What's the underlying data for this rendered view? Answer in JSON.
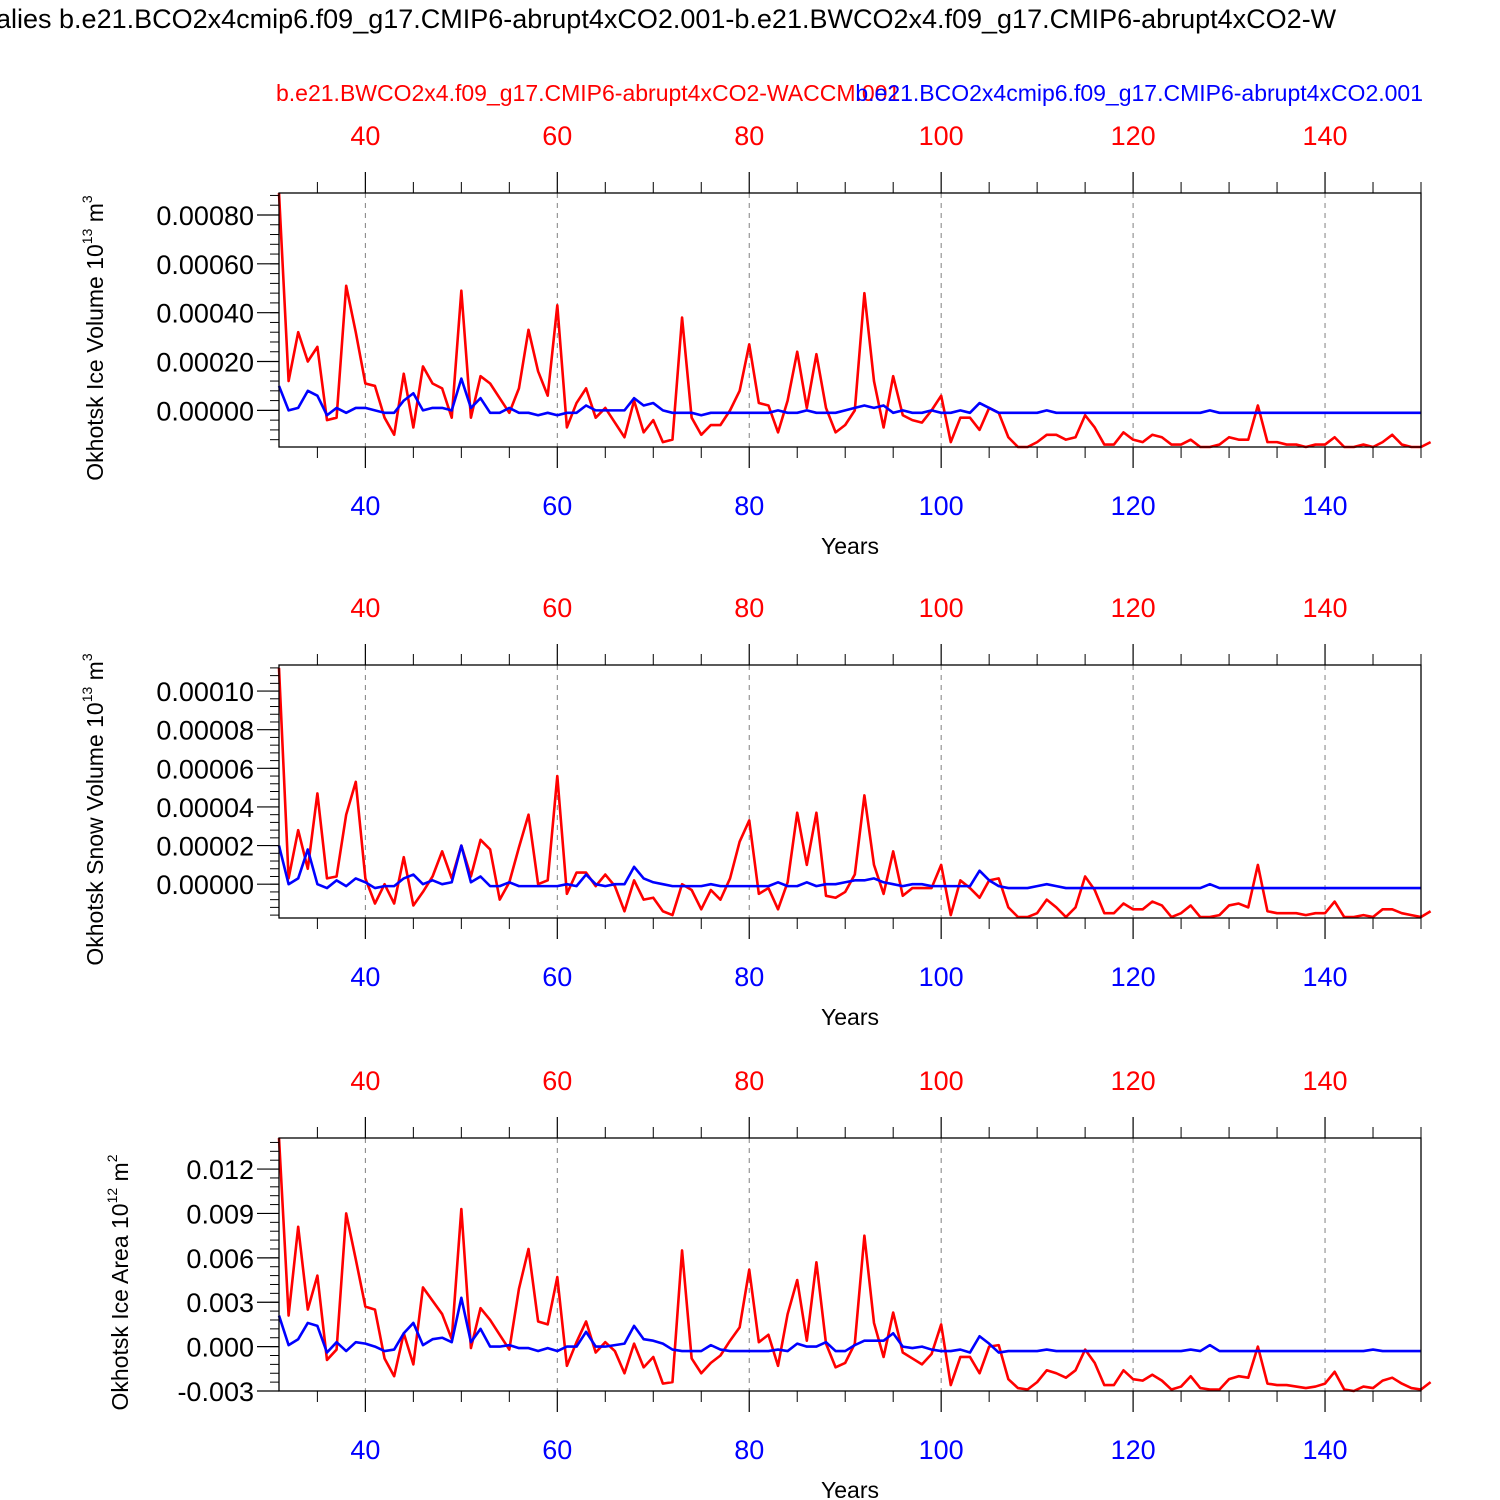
{
  "figure": {
    "title": "alies b.e21.BCO2x4cmip6.f09_g17.CMIP6-abrupt4xCO2.001-b.e21.BWCO2x4.f09_g17.CMIP6-abrupt4xCO2-W",
    "series_red_title": "b.e21.BWCO2x4.f09_g17.CMIP6-abrupt4xCO2-WACCM.001",
    "series_blue_title": "b.e21.BCO2x4cmip6.f09_g17.CMIP6-abrupt4xCO2.001",
    "colors": {
      "red": "#ff0000",
      "blue": "#0000ff",
      "axis": "#000000",
      "grid": "#808080"
    }
  },
  "chart_data": [
    {
      "type": "line",
      "ylabel": "Okhotsk Ice Volume 10",
      "ylabel_exp": "13",
      "ylabel_unit": " m",
      "ylabel_unit_exp": "3",
      "xlabel": "Years",
      "xlim": [
        31,
        150
      ],
      "ylim": [
        -0.00015,
        0.00089
      ],
      "x_ticks": [
        40,
        60,
        80,
        100,
        120,
        140
      ],
      "x_tick_labels": [
        "40",
        "60",
        "80",
        "100",
        "120",
        "140"
      ],
      "y_ticks": [
        0.0,
        0.0002,
        0.0004,
        0.0006,
        0.0008
      ],
      "y_tick_labels": [
        "0.00000",
        "0.00020",
        "0.00040",
        "0.00060",
        "0.00080"
      ],
      "y_minor_step": 4e-05,
      "grid": "vertical dashed",
      "x_start": 31,
      "series": [
        {
          "color": "red",
          "values": [
            0.00089,
            0.00012,
            0.00032,
            0.0002,
            0.00026,
            -4e-05,
            -3e-05,
            0.00051,
            0.00032,
            0.00011,
            0.0001,
            -3e-05,
            -0.0001,
            0.00015,
            -7e-05,
            0.00018,
            0.00011,
            9e-05,
            -3e-05,
            0.00049,
            -3e-05,
            0.00014,
            0.00011,
            5e-05,
            -1e-05,
            9e-05,
            0.00033,
            0.00016,
            6e-05,
            0.00043,
            -7e-05,
            3e-05,
            9e-05,
            -3e-05,
            1e-05,
            -5e-05,
            -0.00011,
            4e-05,
            -9e-05,
            -4e-05,
            -0.00013,
            -0.00012,
            0.00038,
            -3e-05,
            -0.0001,
            -6e-05,
            -6e-05,
            0.0,
            8e-05,
            0.00027,
            3e-05,
            2e-05,
            -9e-05,
            4e-05,
            0.00024,
            1e-05,
            0.00023,
            1e-05,
            -9e-05,
            -6e-05,
            0.0,
            0.00048,
            0.00012,
            -7e-05,
            0.00014,
            -2e-05,
            -4e-05,
            -5e-05,
            0.0,
            6e-05,
            -0.00013,
            -3e-05,
            -3e-05,
            -8e-05,
            1e-05,
            -1e-05,
            -0.00011,
            -0.00015,
            -0.00015,
            -0.00013,
            -0.0001,
            -0.0001,
            -0.00012,
            -0.00011,
            -2e-05,
            -7e-05,
            -0.00014,
            -0.00014,
            -9e-05,
            -0.00012,
            -0.00013,
            -0.0001,
            -0.00011,
            -0.00014,
            -0.00014,
            -0.00012,
            -0.00015,
            -0.00015,
            -0.00014,
            -0.00011,
            -0.00012,
            -0.00012,
            2e-05,
            -0.00013,
            -0.00013,
            -0.00014,
            -0.00014,
            -0.00015,
            -0.00014,
            -0.00014,
            -0.00011,
            -0.00015,
            -0.00015,
            -0.00014,
            -0.00015,
            -0.00013,
            -0.0001,
            -0.00014,
            -0.00015,
            -0.00015,
            -0.00013
          ]
        },
        {
          "color": "blue",
          "values": [
            0.0001,
            0.0,
            1e-05,
            8e-05,
            6e-05,
            -2e-05,
            1e-05,
            -1e-05,
            1e-05,
            1e-05,
            0.0,
            -1e-05,
            -1e-05,
            4e-05,
            7e-05,
            0.0,
            1e-05,
            1e-05,
            0.0,
            0.00013,
            1e-05,
            5e-05,
            -1e-05,
            -1e-05,
            1e-05,
            -1e-05,
            -1e-05,
            -2e-05,
            -1e-05,
            -2e-05,
            -1e-05,
            -1e-05,
            2e-05,
            0.0,
            0.0,
            0.0,
            0.0,
            5e-05,
            2e-05,
            3e-05,
            0.0,
            -1e-05,
            -1e-05,
            -1e-05,
            -2e-05,
            -1e-05,
            -1e-05,
            -1e-05,
            -1e-05,
            -1e-05,
            -1e-05,
            -1e-05,
            0.0,
            -1e-05,
            -1e-05,
            0.0,
            -1e-05,
            -1e-05,
            -1e-05,
            0.0,
            1e-05,
            2e-05,
            1e-05,
            2e-05,
            -1e-05,
            0.0,
            -1e-05,
            -1e-05,
            0.0,
            -1e-05,
            -1e-05,
            0.0,
            -1e-05,
            3e-05,
            1e-05,
            -1e-05,
            -1e-05,
            -1e-05,
            -1e-05,
            -1e-05,
            0.0,
            -1e-05,
            -1e-05,
            -1e-05,
            -1e-05,
            -1e-05,
            -1e-05,
            -1e-05,
            -1e-05,
            -1e-05,
            -1e-05,
            -1e-05,
            -1e-05,
            -1e-05,
            -1e-05,
            -1e-05,
            -1e-05,
            0.0,
            -1e-05,
            -1e-05,
            -1e-05,
            -1e-05,
            -1e-05,
            -1e-05,
            -1e-05,
            -1e-05,
            -1e-05,
            -1e-05,
            -1e-05,
            -1e-05,
            -1e-05,
            -1e-05,
            -1e-05,
            -1e-05,
            -1e-05,
            -1e-05,
            -1e-05,
            -1e-05,
            -1e-05,
            -1e-05
          ]
        }
      ]
    },
    {
      "type": "line",
      "ylabel": "Okhotsk Snow Volume 10",
      "ylabel_exp": "13",
      "ylabel_unit": " m",
      "ylabel_unit_exp": "3",
      "xlabel": "Years",
      "xlim": [
        31,
        150
      ],
      "ylim": [
        -1.75e-05,
        0.0001135
      ],
      "x_ticks": [
        40,
        60,
        80,
        100,
        120,
        140
      ],
      "x_tick_labels": [
        "40",
        "60",
        "80",
        "100",
        "120",
        "140"
      ],
      "y_ticks": [
        0.0,
        2e-05,
        4e-05,
        6e-05,
        8e-05,
        0.0001
      ],
      "y_tick_labels": [
        "0.00000",
        "0.00002",
        "0.00004",
        "0.00006",
        "0.00008",
        "0.00010"
      ],
      "y_minor_step": 4e-06,
      "grid": "vertical dashed",
      "x_start": 31,
      "series": [
        {
          "color": "red",
          "values": [
            0.000112,
            3e-06,
            2.8e-05,
            8e-06,
            4.7e-05,
            3e-06,
            4e-06,
            3.6e-05,
            5.3e-05,
            3e-06,
            -1e-05,
            0.0,
            -1e-05,
            1.4e-05,
            -1.1e-05,
            -4e-06,
            4e-06,
            1.7e-05,
            3e-06,
            2e-05,
            4e-06,
            2.3e-05,
            1.8e-05,
            -8e-06,
            1e-06,
            1.9e-05,
            3.6e-05,
            0.0,
            2e-06,
            5.6e-05,
            -5e-06,
            6e-06,
            6e-06,
            -1e-06,
            5e-06,
            -1e-06,
            -1.4e-05,
            2e-06,
            -8e-06,
            -7e-06,
            -1.4e-05,
            -1.6e-05,
            0.0,
            -3e-06,
            -1.3e-05,
            -3e-06,
            -8e-06,
            3e-06,
            2.2e-05,
            3.3e-05,
            -5e-06,
            -2e-06,
            -1.3e-05,
            1e-06,
            3.7e-05,
            1e-05,
            3.7e-05,
            -6e-06,
            -7e-06,
            -4e-06,
            5e-06,
            4.6e-05,
            1e-05,
            -5e-06,
            1.7e-05,
            -6e-06,
            -2e-06,
            -2e-06,
            -2e-06,
            1e-05,
            -1.6e-05,
            2e-06,
            -2e-06,
            -7e-06,
            2e-06,
            3e-06,
            -1.2e-05,
            -1.7e-05,
            -1.7e-05,
            -1.5e-05,
            -8e-06,
            -1.2e-05,
            -1.7e-05,
            -1.2e-05,
            4e-06,
            -3e-06,
            -1.5e-05,
            -1.5e-05,
            -1e-05,
            -1.3e-05,
            -1.3e-05,
            -9e-06,
            -1.1e-05,
            -1.7e-05,
            -1.5e-05,
            -1.1e-05,
            -1.7e-05,
            -1.7e-05,
            -1.6e-05,
            -1.1e-05,
            -1e-05,
            -1.2e-05,
            1e-05,
            -1.4e-05,
            -1.5e-05,
            -1.5e-05,
            -1.5e-05,
            -1.6e-05,
            -1.5e-05,
            -1.5e-05,
            -9e-06,
            -1.7e-05,
            -1.7e-05,
            -1.6e-05,
            -1.7e-05,
            -1.3e-05,
            -1.3e-05,
            -1.5e-05,
            -1.6e-05,
            -1.7e-05,
            -1.4e-05
          ]
        },
        {
          "color": "blue",
          "values": [
            2e-05,
            0.0,
            3e-06,
            1.8e-05,
            0.0,
            -2e-06,
            2e-06,
            -1e-06,
            3e-06,
            1e-06,
            -2e-06,
            -1e-06,
            -1e-06,
            3e-06,
            5e-06,
            0.0,
            2e-06,
            0.0,
            1e-06,
            2e-05,
            1e-06,
            4e-06,
            -1e-06,
            -1e-06,
            1e-06,
            -1e-06,
            -1e-06,
            -1e-06,
            -1e-06,
            -1e-06,
            0.0,
            -1e-06,
            5e-06,
            0.0,
            -1e-06,
            0.0,
            0.0,
            9e-06,
            3e-06,
            1e-06,
            0.0,
            -1e-06,
            -1e-06,
            -1e-06,
            -1e-06,
            0.0,
            -1e-06,
            -1e-06,
            -1e-06,
            -1e-06,
            -1e-06,
            -1e-06,
            1e-06,
            -1e-06,
            -1e-06,
            1e-06,
            -1e-06,
            0.0,
            0.0,
            1e-06,
            2e-06,
            2e-06,
            3e-06,
            1e-06,
            0.0,
            -1e-06,
            0.0,
            0.0,
            -1e-06,
            -1e-06,
            -1e-06,
            -1e-06,
            -1e-06,
            7e-06,
            2e-06,
            -1e-06,
            -2e-06,
            -2e-06,
            -2e-06,
            -1e-06,
            0.0,
            -1e-06,
            -2e-06,
            -2e-06,
            -2e-06,
            -2e-06,
            -2e-06,
            -2e-06,
            -2e-06,
            -2e-06,
            -2e-06,
            -2e-06,
            -2e-06,
            -2e-06,
            -2e-06,
            -2e-06,
            -2e-06,
            0.0,
            -2e-06,
            -2e-06,
            -2e-06,
            -2e-06,
            -2e-06,
            -2e-06,
            -2e-06,
            -2e-06,
            -2e-06,
            -2e-06,
            -2e-06,
            -2e-06,
            -2e-06,
            -2e-06,
            -2e-06,
            -2e-06,
            -2e-06,
            -2e-06,
            -2e-06,
            -2e-06,
            -2e-06,
            -2e-06
          ]
        }
      ]
    },
    {
      "type": "line",
      "ylabel": "Okhotsk Ice Area 10",
      "ylabel_exp": "12",
      "ylabel_unit": " m",
      "ylabel_unit_exp": "2",
      "xlabel": "Years",
      "xlim": [
        31,
        150
      ],
      "ylim": [
        -0.003,
        0.0141
      ],
      "x_ticks": [
        40,
        60,
        80,
        100,
        120,
        140
      ],
      "x_tick_labels": [
        "40",
        "60",
        "80",
        "100",
        "120",
        "140"
      ],
      "y_ticks": [
        -0.003,
        0.0,
        0.003,
        0.006,
        0.009,
        0.012
      ],
      "y_tick_labels": [
        "-0.003",
        "0.000",
        "0.003",
        "0.006",
        "0.009",
        "0.012"
      ],
      "y_minor_step": 0.0006,
      "grid": "vertical dashed",
      "x_start": 31,
      "series": [
        {
          "color": "red",
          "values": [
            0.0141,
            0.0021,
            0.0081,
            0.0025,
            0.0048,
            -0.0009,
            -0.0002,
            0.009,
            0.0059,
            0.0027,
            0.0025,
            -0.0008,
            -0.002,
            0.0009,
            -0.0012,
            0.004,
            0.0031,
            0.0022,
            0.0005,
            0.0093,
            -0.0001,
            0.0026,
            0.0018,
            0.0008,
            -0.0002,
            0.0039,
            0.0066,
            0.0017,
            0.0015,
            0.0047,
            -0.0013,
            0.0003,
            0.0017,
            -0.0004,
            0.0003,
            -0.0003,
            -0.0018,
            0.0002,
            -0.0014,
            -0.0007,
            -0.0025,
            -0.0024,
            0.0065,
            -0.0008,
            -0.0018,
            -0.0011,
            -0.0006,
            0.0004,
            0.0013,
            0.0052,
            0.0003,
            0.0008,
            -0.0013,
            0.0022,
            0.0045,
            0.0004,
            0.0057,
            0.0002,
            -0.0014,
            -0.0011,
            0.0002,
            0.0075,
            0.0016,
            -0.0007,
            0.0023,
            -0.0004,
            -0.0008,
            -0.0012,
            -0.0005,
            0.0015,
            -0.0026,
            -0.0007,
            -0.0007,
            -0.0018,
            0.0,
            0.0001,
            -0.0022,
            -0.0028,
            -0.0029,
            -0.0024,
            -0.0016,
            -0.0018,
            -0.0021,
            -0.0016,
            -0.0002,
            -0.0011,
            -0.0026,
            -0.0026,
            -0.0016,
            -0.0022,
            -0.0023,
            -0.0019,
            -0.0023,
            -0.0029,
            -0.0027,
            -0.002,
            -0.0028,
            -0.0029,
            -0.0029,
            -0.0022,
            -0.002,
            -0.0021,
            0.0,
            -0.0025,
            -0.0026,
            -0.0026,
            -0.0027,
            -0.0028,
            -0.0027,
            -0.0025,
            -0.0017,
            -0.0029,
            -0.003,
            -0.0027,
            -0.0028,
            -0.0023,
            -0.0021,
            -0.0025,
            -0.0028,
            -0.0029,
            -0.0024
          ]
        },
        {
          "color": "blue",
          "values": [
            0.0021,
            0.0001,
            0.0005,
            0.0016,
            0.0014,
            -0.0004,
            0.0003,
            -0.0003,
            0.0003,
            0.0002,
            0.0,
            -0.0003,
            -0.0002,
            0.0009,
            0.0016,
            0.0001,
            0.0005,
            0.0006,
            0.0003,
            0.0033,
            0.0003,
            0.0012,
            0.0,
            0.0,
            0.0001,
            -0.0001,
            -0.0001,
            -0.0003,
            -0.0001,
            -0.0003,
            0.0,
            0.0,
            0.001,
            0.0,
            0.0,
            0.0001,
            0.0002,
            0.0014,
            0.0005,
            0.0004,
            0.0002,
            -0.0002,
            -0.0003,
            -0.0003,
            -0.0003,
            0.0001,
            -0.0002,
            -0.0003,
            -0.0003,
            -0.0003,
            -0.0003,
            -0.0003,
            -0.0002,
            -0.0003,
            0.0002,
            0.0,
            0.0,
            0.0003,
            -0.0003,
            -0.0003,
            0.0001,
            0.0004,
            0.0004,
            0.0004,
            0.0009,
            0.0,
            -0.0001,
            0.0,
            -0.0002,
            -0.0003,
            -0.0003,
            -0.0002,
            -0.0004,
            0.0007,
            0.0002,
            -0.0004,
            -0.0003,
            -0.0003,
            -0.0003,
            -0.0003,
            -0.0002,
            -0.0003,
            -0.0003,
            -0.0003,
            -0.0003,
            -0.0003,
            -0.0003,
            -0.0003,
            -0.0003,
            -0.0003,
            -0.0003,
            -0.0003,
            -0.0003,
            -0.0003,
            -0.0003,
            -0.0002,
            -0.0003,
            0.0001,
            -0.0003,
            -0.0003,
            -0.0003,
            -0.0003,
            -0.0003,
            -0.0003,
            -0.0003,
            -0.0003,
            -0.0003,
            -0.0003,
            -0.0003,
            -0.0003,
            -0.0003,
            -0.0003,
            -0.0003,
            -0.0003,
            -0.0002,
            -0.0003,
            -0.0003,
            -0.0003,
            -0.0003,
            -0.0003
          ]
        }
      ]
    }
  ]
}
